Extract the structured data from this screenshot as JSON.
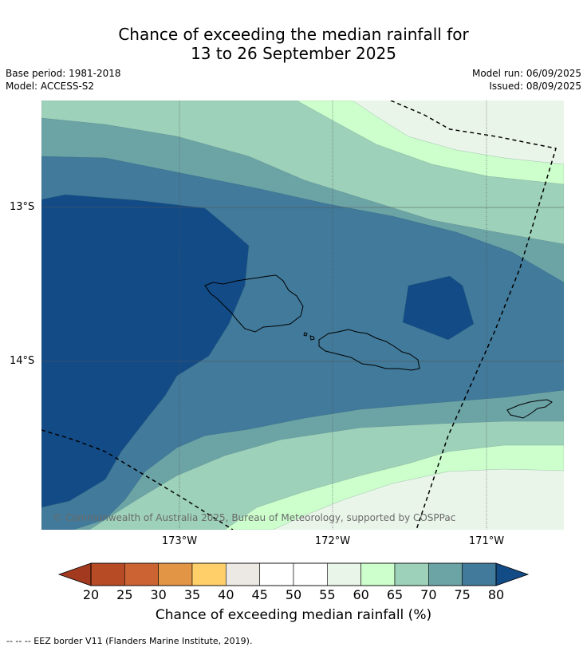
{
  "title_line1": "Chance of exceeding the median rainfall for",
  "title_line2": "13 to 26 September 2025",
  "base_period": "Base period: 1981-2018",
  "model": "Model: ACCESS-S2",
  "model_run": "Model run: 06/09/2025",
  "issued": "Issued: 08/09/2025",
  "lat_labels": [
    "13°S",
    "14°S"
  ],
  "lon_labels": [
    "173°W",
    "172°W",
    "171°W"
  ],
  "copyright": "© Commonwealth of Australia 2025, Bureau of Meteorology, supported by COSPPac",
  "colorbar": {
    "title": "Chance of exceeding median rainfall (%)",
    "ticks": [
      "20",
      "25",
      "30",
      "35",
      "40",
      "45",
      "50",
      "55",
      "60",
      "65",
      "70",
      "75",
      "80"
    ],
    "colors": [
      "#a33a20",
      "#b64b25",
      "#cc6333",
      "#e39546",
      "#ffd06a",
      "#ece9e4",
      "#ffffff",
      "#ffffff",
      "#eaf5ea",
      "#ccffcc",
      "#9dd1b9",
      "#6ca4a6",
      "#417a9a",
      "#134b86"
    ],
    "low_color": "#a33a20",
    "high_color": "#134b86"
  },
  "footnote": "--  --  -- EEZ border V11 (Flanders Marine Institute, 2019)."
}
